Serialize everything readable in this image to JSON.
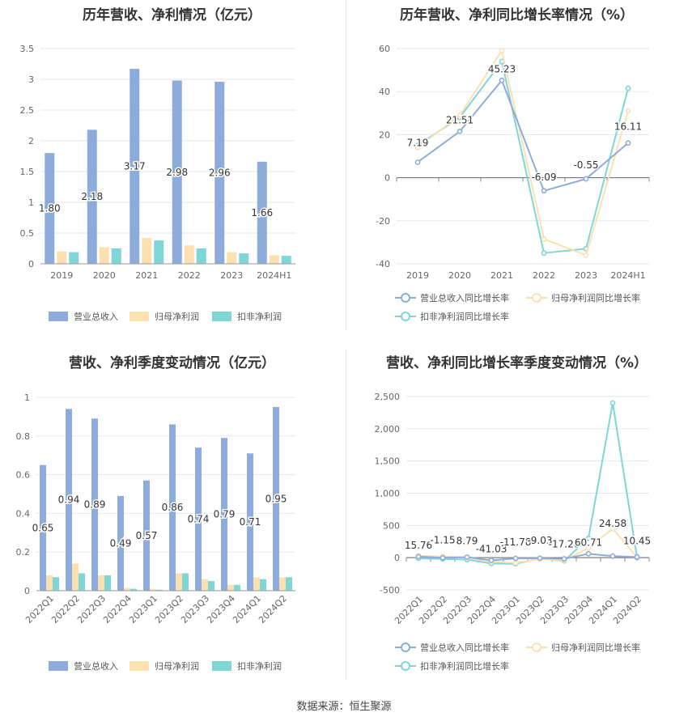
{
  "source": "数据来源：恒生聚源",
  "chart_data": [
    {
      "type": "bar",
      "title": "历年营收、净利情况（亿元）",
      "categories": [
        "2019",
        "2020",
        "2021",
        "2022",
        "2023",
        "2024H1"
      ],
      "ylim": [
        0,
        3.5
      ],
      "yticks": [
        "0",
        "0.5",
        "1",
        "1.5",
        "2",
        "2.5",
        "3",
        "3.5"
      ],
      "grid": true,
      "legend_position": "bottom",
      "series": [
        {
          "name": "营业总收入",
          "color": "#8eacdb",
          "values": [
            1.8,
            2.18,
            3.17,
            2.98,
            2.96,
            1.66
          ],
          "labels": [
            "1.80",
            "2.18",
            "3.17",
            "2.98",
            "2.96",
            "1.66"
          ]
        },
        {
          "name": "归母净利润",
          "color": "#fde0b0",
          "values": [
            0.2,
            0.27,
            0.42,
            0.3,
            0.19,
            0.14
          ]
        },
        {
          "name": "扣非净利润",
          "color": "#7fd6d6",
          "values": [
            0.19,
            0.25,
            0.38,
            0.25,
            0.17,
            0.13
          ]
        }
      ]
    },
    {
      "type": "line",
      "title": "历年营收、净利同比增长率情况（%）",
      "categories": [
        "2019",
        "2020",
        "2021",
        "2022",
        "2023",
        "2024H1"
      ],
      "ylim": [
        -40,
        60
      ],
      "yticks": [
        "-40",
        "-20",
        "0",
        "20",
        "40",
        "60"
      ],
      "grid": true,
      "legend_position": "bottom",
      "series": [
        {
          "name": "营业总收入同比增长率",
          "color": "#8eacdb",
          "values": [
            7.19,
            21.51,
            45.23,
            -6.09,
            -0.55,
            16.11
          ],
          "labels": [
            "7.19",
            "21.51",
            "45.23",
            "-6.09",
            "-0.55",
            "16.11"
          ]
        },
        {
          "name": "归母净利润同比增长率",
          "color": "#fde0b0",
          "values": [
            14,
            29,
            59,
            -28.5,
            -36,
            31
          ]
        },
        {
          "name": "扣非净利润同比增长率",
          "color": "#7fd6d6",
          "values": [
            15,
            28,
            54,
            -35,
            -33,
            41.5
          ]
        }
      ]
    },
    {
      "type": "bar",
      "title": "营收、净利季度变动情况（亿元）",
      "categories": [
        "2022Q1",
        "2022Q2",
        "2022Q3",
        "2022Q4",
        "2023Q1",
        "2023Q2",
        "2023Q3",
        "2023Q4",
        "2024Q1",
        "2024Q2"
      ],
      "ylim": [
        0,
        1
      ],
      "yticks": [
        "0",
        "0.2",
        "0.4",
        "0.6",
        "0.8",
        "1"
      ],
      "grid": true,
      "legend_position": "bottom",
      "series": [
        {
          "name": "营业总收入",
          "color": "#8eacdb",
          "values": [
            0.65,
            0.94,
            0.89,
            0.49,
            0.57,
            0.86,
            0.74,
            0.79,
            0.71,
            0.95
          ],
          "labels": [
            "0.65",
            "0.94",
            "0.89",
            "0.49",
            "0.57",
            "0.86",
            "0.74",
            "0.79",
            "0.71",
            "0.95"
          ]
        },
        {
          "name": "归母净利润",
          "color": "#fde0b0",
          "values": [
            0.08,
            0.14,
            0.08,
            0.015,
            0.01,
            0.09,
            0.06,
            0.03,
            0.07,
            0.07
          ]
        },
        {
          "name": "扣非净利润",
          "color": "#7fd6d6",
          "values": [
            0.07,
            0.09,
            0.08,
            0.01,
            0.005,
            0.09,
            0.05,
            0.03,
            0.06,
            0.07
          ]
        }
      ]
    },
    {
      "type": "line",
      "title": "营收、净利同比增长率季度变动情况（%）",
      "categories": [
        "2022Q1",
        "2022Q2",
        "2022Q3",
        "2022Q4",
        "2023Q1",
        "2023Q2",
        "2023Q3",
        "2023Q4",
        "2024Q1",
        "2024Q2"
      ],
      "ylim": [
        -500,
        2500
      ],
      "yticks": [
        "-500",
        "0",
        "500",
        "1,000",
        "1,500",
        "2,000",
        "2,500"
      ],
      "grid": true,
      "legend_position": "bottom",
      "series": [
        {
          "name": "营业总收入同比增长率",
          "color": "#8eacdb",
          "values": [
            15.76,
            -1.15,
            8.79,
            -41.03,
            -11.78,
            -9.03,
            -17.26,
            60.71,
            24.58,
            10.45
          ],
          "labels": [
            "15.76",
            "-1.15",
            "8.79",
            "-41.03",
            "-11.78",
            "-9.03",
            "-17.26",
            "60.71",
            "24.58",
            "10.45"
          ]
        },
        {
          "name": "归母净利润同比增长率",
          "color": "#fde0b0",
          "values": [
            30,
            20,
            0,
            -60,
            -80,
            -20,
            -40,
            150,
            450,
            10
          ]
        },
        {
          "name": "扣非净利润同比增长率",
          "color": "#7fd6d6",
          "values": [
            -10,
            -20,
            -30,
            -90,
            -95,
            -10,
            -50,
            300,
            2400,
            0
          ]
        }
      ]
    }
  ]
}
